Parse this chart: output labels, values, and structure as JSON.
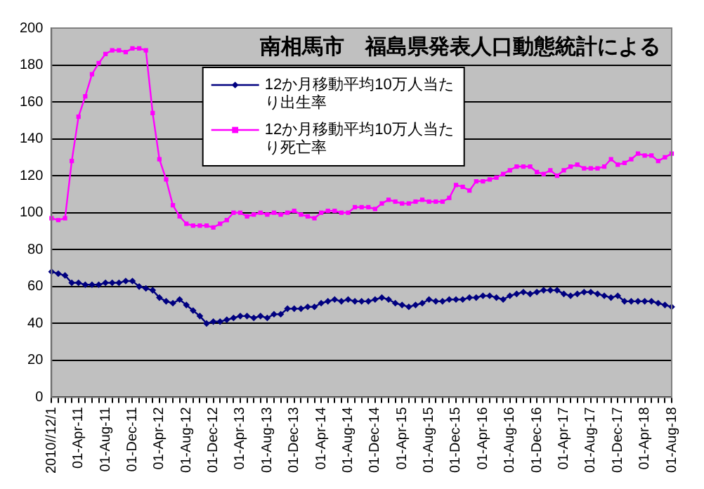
{
  "chart_data": {
    "type": "line",
    "title": "南相馬市　福島県発表人口動態統計による",
    "categories": [
      "2010//12/1",
      null,
      null,
      null,
      "01-Apr-11",
      null,
      null,
      null,
      "01-Aug-11",
      null,
      null,
      null,
      "01-Dec-11",
      null,
      null,
      null,
      "01-Apr-12",
      null,
      null,
      null,
      "01-Aug-12",
      null,
      null,
      null,
      "01-Dec-12",
      null,
      null,
      null,
      "01-Apr-13",
      null,
      null,
      null,
      "01-Aug-13",
      null,
      null,
      null,
      "01-Dec-13",
      null,
      null,
      null,
      "01-Apr-14",
      null,
      null,
      null,
      "01-Aug-14",
      null,
      null,
      null,
      "01-Dec-14",
      null,
      null,
      null,
      "01-Apr-15",
      null,
      null,
      null,
      "01-Aug-15",
      null,
      null,
      null,
      "01-Dec-15",
      null,
      null,
      null,
      "01-Apr-16",
      null,
      null,
      null,
      "01-Aug-16",
      null,
      null,
      null,
      "01-Dec-16",
      null,
      null,
      null,
      "01-Apr-17",
      null,
      null,
      null,
      "01-Aug-17",
      null,
      null,
      null,
      "01-Dec-17",
      null,
      null,
      null,
      "01-Apr-18",
      null,
      null,
      null,
      "01-Aug-18"
    ],
    "series": [
      {
        "name": "12か月移動平均10万人当たり出生率",
        "color": "#000080",
        "marker": "diamond",
        "values": [
          68,
          67,
          66,
          62,
          62,
          61,
          61,
          61,
          62,
          62,
          62,
          63,
          63,
          60,
          59,
          58,
          54,
          52,
          51,
          53,
          50,
          47,
          44,
          40,
          41,
          41,
          42,
          43,
          44,
          44,
          43,
          44,
          43,
          45,
          45,
          48,
          48,
          48,
          49,
          49,
          51,
          52,
          53,
          52,
          53,
          52,
          52,
          52,
          53,
          54,
          53,
          51,
          50,
          49,
          50,
          51,
          53,
          52,
          52,
          53,
          53,
          53,
          54,
          54,
          55,
          55,
          54,
          53,
          55,
          56,
          57,
          56,
          57,
          58,
          58,
          58,
          56,
          55,
          56,
          57,
          57,
          56,
          55,
          54,
          55,
          52,
          52,
          52,
          52,
          52,
          51,
          50,
          49
        ]
      },
      {
        "name": "12か月移動平均10万人当たり死亡率",
        "color": "#ff00ff",
        "marker": "square",
        "values": [
          97,
          96,
          97,
          128,
          152,
          163,
          175,
          181,
          186,
          188,
          188,
          187,
          189,
          189,
          188,
          154,
          129,
          118,
          104,
          98,
          94,
          93,
          93,
          93,
          92,
          94,
          96,
          100,
          100,
          98,
          99,
          100,
          99,
          100,
          99,
          100,
          101,
          99,
          98,
          97,
          100,
          101,
          101,
          100,
          100,
          103,
          103,
          103,
          102,
          105,
          107,
          106,
          105,
          105,
          106,
          107,
          106,
          106,
          106,
          108,
          115,
          114,
          112,
          117,
          117,
          118,
          119,
          121,
          123,
          125,
          125,
          125,
          122,
          121,
          123,
          120,
          123,
          125,
          126,
          124,
          124,
          124,
          125,
          129,
          126,
          127,
          129,
          132,
          131,
          131,
          128,
          130,
          132
        ]
      }
    ],
    "ylim": [
      0,
      200
    ],
    "yticks": [
      0,
      20,
      40,
      60,
      80,
      100,
      120,
      140,
      160,
      180,
      200
    ],
    "grid": "y",
    "legend": "top"
  }
}
